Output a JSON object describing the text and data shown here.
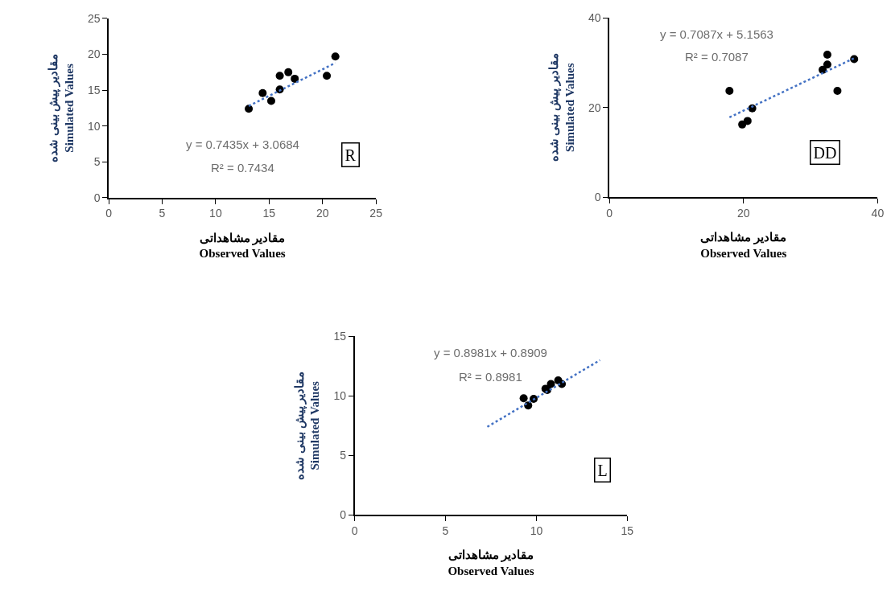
{
  "chart_data": [
    {
      "type": "scatter",
      "title": "R",
      "xlabel": "مقادیر مشاهداتی\nObserved Values",
      "ylabel": "مقادیر پیش بینی شده\nSimulated Values",
      "xlim": [
        0,
        25
      ],
      "xticks": [
        0,
        5,
        10,
        15,
        20,
        25
      ],
      "ylim": [
        0,
        25
      ],
      "yticks": [
        0,
        5,
        10,
        15,
        20,
        25
      ],
      "annotations": [
        "y = 0.7435x + 3.0684",
        "R² = 0.7434"
      ],
      "series": [
        {
          "color": "#000000",
          "marker": "circle",
          "x": [
            13.1,
            14.4,
            15.2,
            16.0,
            16.0,
            16.8,
            17.4,
            20.4,
            21.2
          ],
          "values": [
            12.4,
            14.6,
            13.5,
            15.1,
            17.0,
            17.5,
            16.6,
            17.0,
            19.7
          ]
        },
        {
          "type": "line",
          "color": "#4472c4",
          "line_style": "dotted",
          "marker": "none",
          "x": [
            13.1,
            21.2
          ],
          "values": [
            12.8,
            18.8
          ]
        }
      ]
    },
    {
      "type": "scatter",
      "title": "DD",
      "xlabel": "مقادیر مشاهداتی\nObserved Values",
      "ylabel": "مقادیر پیش بینی شده\nSimulated Values",
      "xlim": [
        0,
        40
      ],
      "xticks": [
        0,
        20,
        40
      ],
      "ylim": [
        0,
        40
      ],
      "yticks": [
        0,
        20,
        40
      ],
      "annotations": [
        "y = 0.7087x + 5.1563",
        "R² = 0.7087"
      ],
      "series": [
        {
          "color": "#000000",
          "marker": "circle",
          "x": [
            17.9,
            19.8,
            20.6,
            21.3,
            31.8,
            32.5,
            32.5,
            34.0,
            36.5
          ],
          "values": [
            23.7,
            16.2,
            17.0,
            19.8,
            28.4,
            31.8,
            29.6,
            23.7,
            30.8
          ]
        },
        {
          "type": "line",
          "color": "#4472c4",
          "line_style": "dotted",
          "marker": "none",
          "x": [
            17.9,
            36.5
          ],
          "values": [
            17.8,
            31.0
          ]
        }
      ]
    },
    {
      "type": "scatter",
      "title": "L",
      "xlabel": "مقادیر مشاهداتی\nObserved Values",
      "ylabel": "مقادیر پیش بینی شده\nSimulated Values",
      "xlim": [
        0,
        15
      ],
      "xticks": [
        0,
        5,
        10,
        15
      ],
      "ylim": [
        0,
        15
      ],
      "yticks": [
        0,
        5,
        10,
        15
      ],
      "annotations": [
        "y = 0.8981x + 0.8909",
        "R² = 0.8981"
      ],
      "series": [
        {
          "color": "#000000",
          "marker": "circle",
          "x": [
            9.3,
            9.55,
            9.85,
            10.5,
            10.6,
            10.8,
            11.2,
            11.4
          ],
          "values": [
            9.8,
            9.2,
            9.75,
            10.6,
            10.5,
            11.0,
            11.3,
            11.0
          ]
        },
        {
          "type": "line",
          "color": "#4472c4",
          "line_style": "dotted",
          "marker": "none",
          "x": [
            7.3,
            13.5
          ],
          "values": [
            7.4,
            13.0
          ]
        }
      ]
    }
  ]
}
